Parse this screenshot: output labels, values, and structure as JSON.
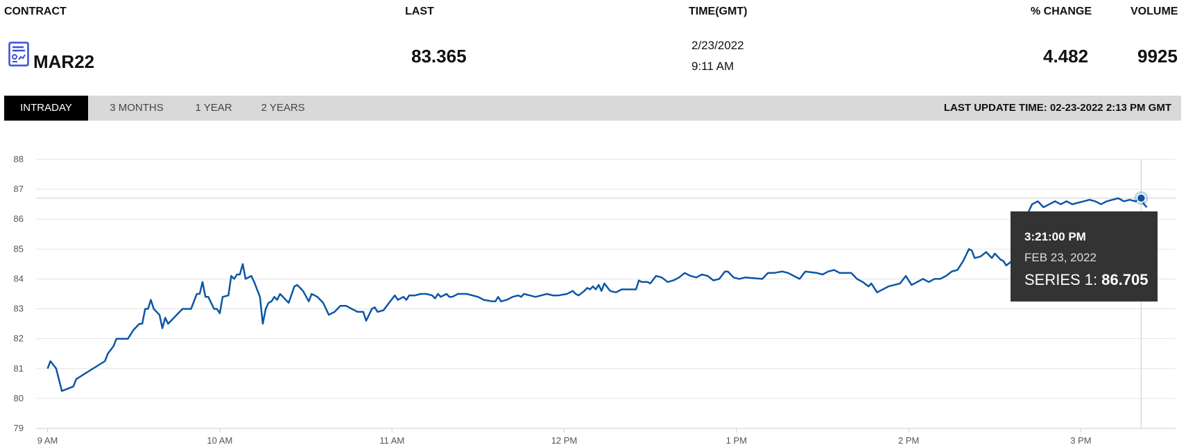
{
  "header": {
    "contract_label": "CONTRACT",
    "last_label": "LAST",
    "time_label": "TIME(GMT)",
    "change_label": "% CHANGE",
    "volume_label": "VOLUME"
  },
  "quote": {
    "contract": "MAR22",
    "last": "83.365",
    "date": "2/23/2022",
    "time": "9:11 AM",
    "change": "4.482",
    "volume": "9925"
  },
  "icons": {
    "contract": "chart-document-icon"
  },
  "tabs": [
    {
      "label": "INTRADAY",
      "active": true
    },
    {
      "label": "3 MONTHS",
      "active": false
    },
    {
      "label": "1 YEAR",
      "active": false
    },
    {
      "label": "2 YEARS",
      "active": false
    }
  ],
  "last_update": "LAST UPDATE TIME: 02-23-2022 2:13 PM GMT",
  "colors": {
    "line": "#0b56a4",
    "grid": "#e3e3e3",
    "tooltip_bg": "#333333",
    "tab_active": "#000000",
    "tabbar": "#d9d9d9"
  },
  "chart_data": {
    "type": "line",
    "ylim": [
      79,
      88
    ],
    "y_ticks": [
      "79",
      "80",
      "81",
      "82",
      "83",
      "84",
      "85",
      "86",
      "87",
      "88"
    ],
    "x_ticks": [
      {
        "t": 0,
        "label": "9 AM"
      },
      {
        "t": 60,
        "label": "10 AM"
      },
      {
        "t": 120,
        "label": "11 AM"
      },
      {
        "t": 180,
        "label": "12 PM"
      },
      {
        "t": 240,
        "label": "1 PM"
      },
      {
        "t": 300,
        "label": "2 PM"
      },
      {
        "t": 360,
        "label": "3 PM"
      }
    ],
    "xlim": [
      -4,
      393
    ],
    "grid": true,
    "series": [
      {
        "name": "Series 1",
        "points": [
          [
            0,
            81.0
          ],
          [
            1,
            81.25
          ],
          [
            3,
            81.0
          ],
          [
            5,
            80.25
          ],
          [
            9,
            80.4
          ],
          [
            10,
            80.65
          ],
          [
            20,
            81.25
          ],
          [
            21,
            81.5
          ],
          [
            23,
            81.75
          ],
          [
            24,
            82.0
          ],
          [
            28,
            82.0
          ],
          [
            30,
            82.3
          ],
          [
            32,
            82.5
          ],
          [
            33,
            82.5
          ],
          [
            34,
            83.0
          ],
          [
            35,
            83.0
          ],
          [
            36,
            83.3
          ],
          [
            37,
            83.0
          ],
          [
            39,
            82.8
          ],
          [
            40,
            82.35
          ],
          [
            41,
            82.7
          ],
          [
            42,
            82.5
          ],
          [
            45,
            82.8
          ],
          [
            47,
            83.0
          ],
          [
            50,
            83.0
          ],
          [
            52,
            83.5
          ],
          [
            53,
            83.5
          ],
          [
            54,
            83.9
          ],
          [
            55,
            83.4
          ],
          [
            56,
            83.4
          ],
          [
            57,
            83.2
          ],
          [
            58,
            83.0
          ],
          [
            59,
            83.0
          ],
          [
            60,
            82.85
          ],
          [
            61,
            83.4
          ],
          [
            63,
            83.45
          ],
          [
            64,
            84.1
          ],
          [
            65,
            84.0
          ],
          [
            66,
            84.15
          ],
          [
            67,
            84.15
          ],
          [
            68,
            84.5
          ],
          [
            69,
            84.0
          ],
          [
            71,
            84.1
          ],
          [
            72,
            83.9
          ],
          [
            74,
            83.4
          ],
          [
            75,
            82.5
          ],
          [
            76,
            83.0
          ],
          [
            77,
            83.2
          ],
          [
            78,
            83.25
          ],
          [
            79,
            83.4
          ],
          [
            80,
            83.3
          ],
          [
            81,
            83.5
          ],
          [
            82,
            83.4
          ],
          [
            84,
            83.2
          ],
          [
            86,
            83.75
          ],
          [
            87,
            83.8
          ],
          [
            89,
            83.6
          ],
          [
            91,
            83.25
          ],
          [
            92,
            83.5
          ],
          [
            94,
            83.4
          ],
          [
            96,
            83.2
          ],
          [
            98,
            82.8
          ],
          [
            100,
            82.9
          ],
          [
            102,
            83.1
          ],
          [
            104,
            83.1
          ],
          [
            106,
            83.0
          ],
          [
            108,
            82.9
          ],
          [
            110,
            82.9
          ],
          [
            111,
            82.6
          ],
          [
            112,
            82.8
          ],
          [
            113,
            83.0
          ],
          [
            114,
            83.05
          ],
          [
            115,
            82.9
          ],
          [
            117,
            82.95
          ],
          [
            119,
            83.2
          ],
          [
            121,
            83.45
          ],
          [
            122,
            83.3
          ],
          [
            124,
            83.4
          ],
          [
            125,
            83.3
          ],
          [
            126,
            83.45
          ],
          [
            128,
            83.45
          ],
          [
            130,
            83.5
          ],
          [
            132,
            83.5
          ],
          [
            134,
            83.45
          ],
          [
            135,
            83.35
          ],
          [
            136,
            83.5
          ],
          [
            137,
            83.4
          ],
          [
            139,
            83.5
          ],
          [
            140,
            83.4
          ],
          [
            141,
            83.4
          ],
          [
            143,
            83.5
          ],
          [
            146,
            83.5
          ],
          [
            148,
            83.45
          ],
          [
            150,
            83.4
          ],
          [
            152,
            83.3
          ],
          [
            155,
            83.25
          ],
          [
            156,
            83.25
          ],
          [
            157,
            83.4
          ],
          [
            158,
            83.25
          ],
          [
            160,
            83.3
          ],
          [
            162,
            83.4
          ],
          [
            164,
            83.45
          ],
          [
            165,
            83.4
          ],
          [
            166,
            83.5
          ],
          [
            168,
            83.45
          ],
          [
            170,
            83.4
          ],
          [
            172,
            83.45
          ],
          [
            174,
            83.5
          ],
          [
            176,
            83.45
          ],
          [
            178,
            83.45
          ],
          [
            181,
            83.5
          ],
          [
            183,
            83.6
          ],
          [
            184,
            83.5
          ],
          [
            185,
            83.45
          ],
          [
            187,
            83.6
          ],
          [
            188,
            83.7
          ],
          [
            189,
            83.65
          ],
          [
            190,
            83.75
          ],
          [
            191,
            83.65
          ],
          [
            192,
            83.8
          ],
          [
            193,
            83.6
          ],
          [
            194,
            83.85
          ],
          [
            196,
            83.6
          ],
          [
            198,
            83.55
          ],
          [
            200,
            83.65
          ],
          [
            203,
            83.65
          ],
          [
            205,
            83.65
          ],
          [
            206,
            83.95
          ],
          [
            207,
            83.9
          ],
          [
            209,
            83.9
          ],
          [
            210,
            83.85
          ],
          [
            212,
            84.1
          ],
          [
            214,
            84.05
          ],
          [
            216,
            83.9
          ],
          [
            218,
            83.95
          ],
          [
            220,
            84.05
          ],
          [
            222,
            84.2
          ],
          [
            224,
            84.1
          ],
          [
            226,
            84.05
          ],
          [
            228,
            84.15
          ],
          [
            230,
            84.1
          ],
          [
            232,
            83.95
          ],
          [
            234,
            84.0
          ],
          [
            236,
            84.25
          ],
          [
            237,
            84.25
          ],
          [
            239,
            84.05
          ],
          [
            241,
            84.0
          ],
          [
            243,
            84.05
          ],
          [
            249,
            84.0
          ],
          [
            251,
            84.2
          ],
          [
            253,
            84.2
          ],
          [
            256,
            84.25
          ],
          [
            258,
            84.2
          ],
          [
            260,
            84.1
          ],
          [
            262,
            84.0
          ],
          [
            264,
            84.25
          ],
          [
            268,
            84.2
          ],
          [
            270,
            84.15
          ],
          [
            272,
            84.25
          ],
          [
            274,
            84.3
          ],
          [
            276,
            84.2
          ],
          [
            278,
            84.2
          ],
          [
            280,
            84.2
          ],
          [
            282,
            84.0
          ],
          [
            284,
            83.9
          ],
          [
            286,
            83.75
          ],
          [
            287,
            83.85
          ],
          [
            289,
            83.55
          ],
          [
            291,
            83.65
          ],
          [
            293,
            83.75
          ],
          [
            295,
            83.8
          ],
          [
            297,
            83.85
          ],
          [
            299,
            84.1
          ],
          [
            301,
            83.8
          ],
          [
            303,
            83.9
          ],
          [
            305,
            84.0
          ],
          [
            307,
            83.9
          ],
          [
            309,
            84.0
          ],
          [
            311,
            84.0
          ],
          [
            313,
            84.1
          ],
          [
            315,
            84.25
          ],
          [
            317,
            84.3
          ],
          [
            319,
            84.6
          ],
          [
            320,
            84.8
          ],
          [
            321,
            85.0
          ],
          [
            322,
            84.95
          ],
          [
            323,
            84.7
          ],
          [
            325,
            84.75
          ],
          [
            327,
            84.9
          ],
          [
            329,
            84.7
          ],
          [
            330,
            84.85
          ],
          [
            332,
            84.65
          ],
          [
            333,
            84.6
          ],
          [
            334,
            84.45
          ],
          [
            336,
            84.6
          ],
          [
            337,
            84.7
          ],
          [
            339,
            85.5
          ],
          [
            341,
            86.0
          ],
          [
            342,
            86.3
          ],
          [
            343,
            86.5
          ],
          [
            345,
            86.6
          ],
          [
            347,
            86.4
          ],
          [
            349,
            86.5
          ],
          [
            351,
            86.6
          ],
          [
            353,
            86.5
          ],
          [
            355,
            86.6
          ],
          [
            357,
            86.5
          ],
          [
            359,
            86.55
          ],
          [
            361,
            86.6
          ],
          [
            363,
            86.65
          ],
          [
            365,
            86.6
          ],
          [
            367,
            86.5
          ],
          [
            369,
            86.6
          ],
          [
            371,
            86.65
          ],
          [
            373,
            86.7
          ],
          [
            375,
            86.6
          ],
          [
            377,
            86.65
          ],
          [
            379,
            86.6
          ],
          [
            381,
            86.705
          ],
          [
            382,
            86.5
          ],
          [
            383,
            86.4
          ]
        ]
      }
    ],
    "crosshair": {
      "t": 381,
      "y": 86.705
    },
    "tooltip": {
      "time": "3:21:00 PM",
      "date": "FEB 23, 2022",
      "series_label": "SERIES 1:",
      "series_value": "86.705"
    }
  }
}
